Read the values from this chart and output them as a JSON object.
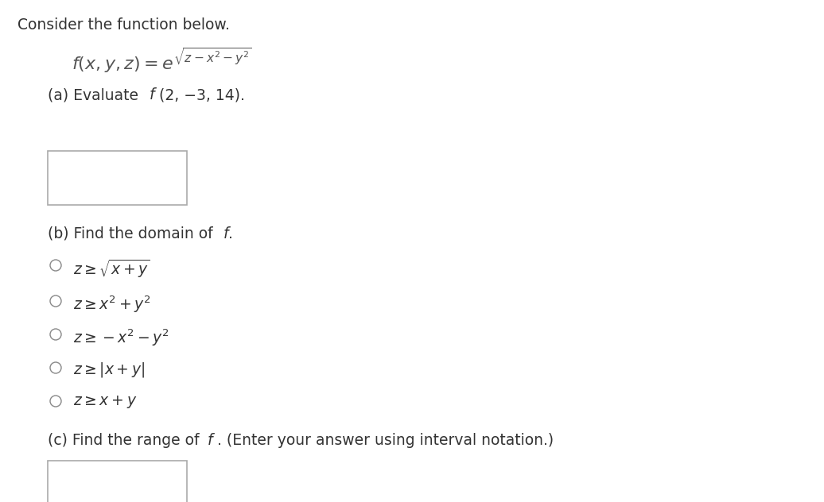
{
  "background_color": "#ffffff",
  "text_color": "#333333",
  "title": "Consider the function below.",
  "function_expr": "$f(x, y, z) = e^{\\sqrt{z-x^2-y^2}}$",
  "part_a_text": "(a) Evaluate",
  "part_a_f": "$f$",
  "part_a_args": "(2, −3, 14).",
  "part_b_text": "(b) Find the domain of ",
  "part_b_f": "$f.$",
  "radio_options": [
    "$z \\geq \\sqrt{x + y}$",
    "$z \\geq x^2 + y^2$",
    "$z \\geq -x^2 - y^2$",
    "$z \\geq |x + y|$",
    "$z \\geq x + y$"
  ],
  "part_c_text1": "(c) Find the range of ",
  "part_c_f": "$f$",
  "part_c_text2": ". (Enter your answer using interval notation.)",
  "title_fontsize": 13.5,
  "body_fontsize": 13.5,
  "math_fontsize": 16
}
